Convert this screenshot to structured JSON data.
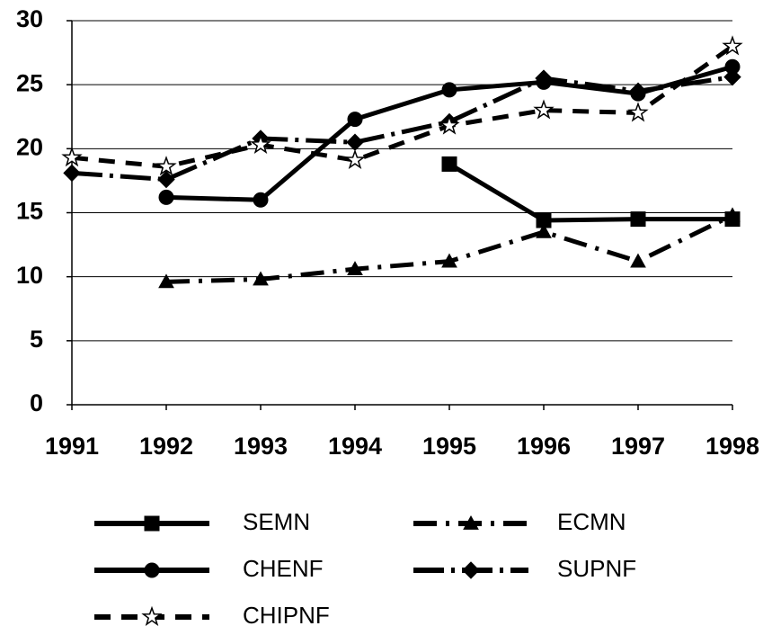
{
  "chart_data": {
    "type": "line",
    "categories": [
      "1991",
      "1992",
      "1993",
      "1994",
      "1995",
      "1996",
      "1997",
      "1998"
    ],
    "ylim": [
      0,
      30
    ],
    "yticks": [
      0,
      5,
      10,
      15,
      20,
      25,
      30
    ],
    "grid": true,
    "series": [
      {
        "name": "SEMN",
        "color": "#000000",
        "marker": "square",
        "dash": "solid",
        "values": [
          null,
          null,
          null,
          null,
          18.8,
          14.4,
          14.5,
          14.5
        ]
      },
      {
        "name": "ECMN",
        "color": "#000000",
        "marker": "triangle",
        "dash": "dash-dot",
        "values": [
          null,
          9.6,
          9.8,
          10.6,
          11.2,
          13.5,
          11.2,
          14.8
        ]
      },
      {
        "name": "CHENF",
        "color": "#000000",
        "marker": "circle",
        "dash": "solid",
        "values": [
          null,
          16.2,
          16.0,
          22.3,
          24.6,
          25.2,
          24.3,
          26.4
        ]
      },
      {
        "name": "SUPNF",
        "color": "#000000",
        "marker": "diamond",
        "dash": "long-dash-dot",
        "values": [
          18.1,
          17.6,
          20.8,
          20.5,
          22.1,
          25.5,
          24.5,
          25.6
        ]
      },
      {
        "name": "CHIPNF",
        "color": "#000000",
        "marker": "star",
        "dash": "dashed",
        "values": [
          19.3,
          18.6,
          20.3,
          19.1,
          21.8,
          23.0,
          22.8,
          28.0
        ]
      }
    ]
  }
}
